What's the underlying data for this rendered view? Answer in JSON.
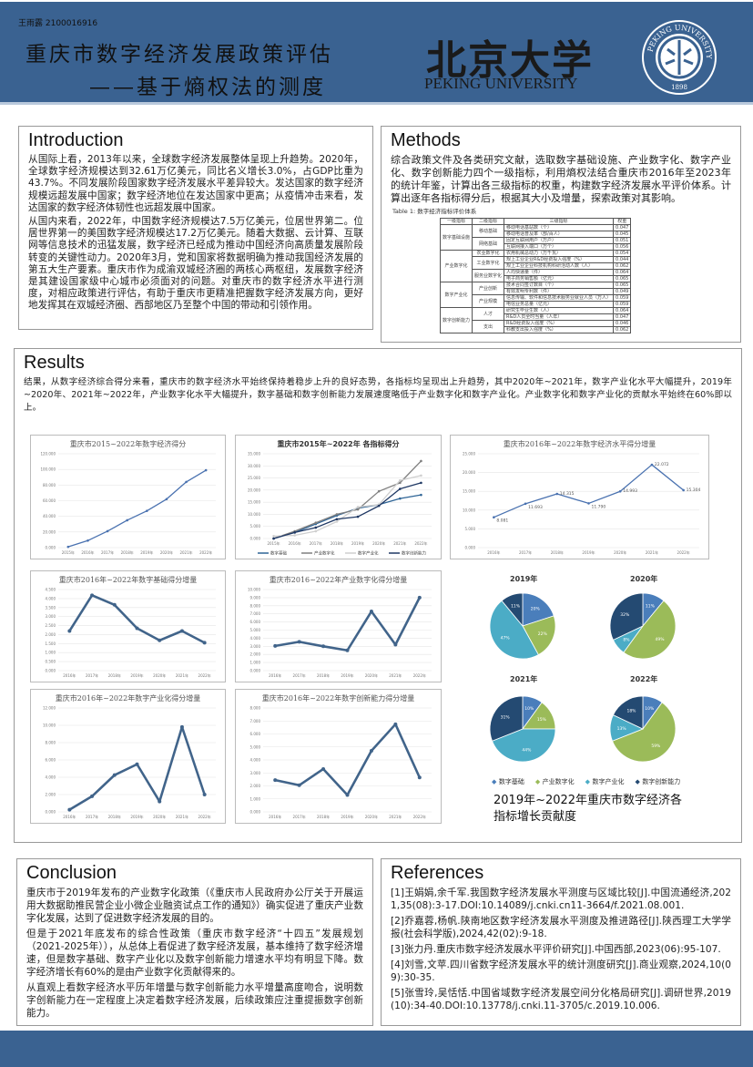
{
  "header": {
    "student": "王雨露 2100016916",
    "title_line1": "重庆市数字经济发展政策评估",
    "title_line2": "——基于熵权法的测度",
    "logo_cn": "北京大学",
    "logo_en": "PEKING UNIVERSITY",
    "seal_text": "PEKING UNIVERSITY",
    "seal_year": "1898",
    "color": "#3a6291"
  },
  "introduction": {
    "heading": "Introduction",
    "paragraphs": [
      "从国际上看，2013年以来，全球数字经济发展整体呈现上升趋势。2020年，全球数字经济规模达到32.61万亿美元，同比名义增长3.0%，占GDP比重为43.7%。不同发展阶段国家数字经济发展水平差异较大。发达国家的数字经济规模远超发展中国家；数字经济地位在发达国家中更高；从疫情冲击来看，发达国家的数字经济体韧性也远超发展中国家。",
      "从国内来看，2022年，中国数字经济规模达7.5万亿美元，位居世界第二。位居世界第一的美国数字经济规模达17.2万亿美元。随着大数据、云计算、互联网等信息技术的迅猛发展，数字经济已经成为推动中国经济向高质量发展阶段转变的关键性动力。2020年3月，党和国家将数据明确为推动我国经济发展的第五大生产要素。重庆市作为成渝双城经济圈的两核心两枢纽，发展数字经济是其建设国家级中心城市必须面对的问题。对重庆市的数字经济水平进行测度，对相应政策进行评估，有助于重庆市更精准把握数字经济发展方向，更好地发挥其在双城经济圈、西部地区乃至整个中国的带动和引领作用。"
    ]
  },
  "methods": {
    "heading": "Methods",
    "paragraph": "综合政策文件及各类研究文献，选取数字基础设施、产业数字化、数字产业化、数字创新能力四个一级指标，利用熵权法结合重庆市2016年至2023年的统计年鉴，计算出各三级指标的权重，构建数字经济发展水平评价体系。计算出逐年各指标得分后，根据其大小及增量，探索政策对其影响。",
    "table_caption": "Table 1: 数字经济指标评价体系",
    "table_headers": [
      "一级指标",
      "二级指标",
      "三级指标",
      "权重"
    ],
    "table_groups": [
      {
        "l1": "数字基础设施",
        "subs": [
          {
            "l2": "移动基础",
            "items": [
              [
                "移动电话基站数（个）",
                "0.047"
              ],
              [
                "移动电话普及率（部/百人）",
                "0.045"
              ]
            ]
          },
          {
            "l2": "网络基础",
            "items": [
              [
                "固定互联网用户（万户）",
                "0.051"
              ],
              [
                "互联网接入端口（万个）",
                "0.056"
              ]
            ]
          }
        ]
      },
      {
        "l1": "产业数字化",
        "subs": [
          {
            "l2": "农业数字化",
            "items": [
              [
                "农用机械总动力（万千瓦）",
                "0.054"
              ]
            ]
          },
          {
            "l2": "工业数字化",
            "items": [
              [
                "规上工业企业R&D经费投入强度（%）",
                "0.044"
              ],
              [
                "规上工业企业科技机构科研活动人数（人）",
                "0.062"
              ]
            ]
          },
          {
            "l2": "服务业数字化",
            "items": [
              [
                "人均快递量（件）",
                "0.064"
              ],
              [
                "电子商务销售额（亿元）",
                "0.065"
              ]
            ]
          }
        ]
      },
      {
        "l1": "数字产业化",
        "subs": [
          {
            "l2": "产业创新",
            "items": [
              [
                "技术合同签订数目（个）",
                "0.065"
              ],
              [
                "有效发明专利数（件）",
                "0.049"
              ]
            ]
          },
          {
            "l2": "产业规模",
            "items": [
              [
                "信息传输、软件和信息技术服务业就业人员（万人）",
                "0.059"
              ],
              [
                "电信业务总量（亿元）",
                "0.059"
              ]
            ]
          }
        ]
      },
      {
        "l1": "数字创新能力",
        "subs": [
          {
            "l2": "人才",
            "items": [
              [
                "研究生毕业生数（人）",
                "0.064"
              ],
              [
                "R&D人员全时当量（人年）",
                "0.047"
              ]
            ]
          },
          {
            "l2": "支出",
            "items": [
              [
                "R&D经费投入强度（%）",
                "0.046"
              ],
              [
                "科教支出投入强度（%）",
                "0.062"
              ]
            ]
          }
        ]
      }
    ]
  },
  "results": {
    "heading": "Results",
    "paragraph": "结果，从数字经济综合得分来看，重庆市的数字经济水平始终保持着稳步上升的良好态势，各指标均呈现出上升趋势，其中2020年~2021年，数字产业化水平大幅提升，2019年~2020年、2021年~2022年，产业数字化水平大幅提升，数字基础和数字创新能力发展速度略低于产业数字化和数字产业化。产业数字化和数字产业化的贡献水平始终在60%即以上。",
    "pie_caption": "2019年~2022年重庆市数字经济各指标增长贡献度"
  },
  "chart_data": [
    {
      "type": "line",
      "title": "重庆市2015~2022年数字经济得分",
      "categories": [
        "2015年",
        "2016年",
        "2017年",
        "2018年",
        "2019年",
        "2020年",
        "2021年",
        "2022年"
      ],
      "ylim": [
        0,
        120
      ],
      "ystep": 20,
      "series": [
        {
          "values": [
            1,
            9,
            21,
            35,
            47,
            62,
            84,
            99
          ],
          "color": "#4a72b0"
        }
      ],
      "markers": true
    },
    {
      "type": "line",
      "title": "重庆市2015年~2022年 各指标得分",
      "categories": [
        "2015年",
        "2016年",
        "2017年",
        "2018年",
        "2019年",
        "2020年",
        "2021年",
        "2022年"
      ],
      "ylim": [
        0,
        35
      ],
      "ystep": 5,
      "legend": "bottom",
      "series": [
        {
          "name": "数字基础",
          "values": [
            0,
            2.5,
            6,
            9.5,
            12.5,
            14,
            16.5,
            18
          ],
          "color": "#2e6496"
        },
        {
          "name": "产业数字化",
          "values": [
            0,
            3,
            6.5,
            10,
            12,
            19.5,
            23,
            32
          ],
          "color": "#7f7f7f"
        },
        {
          "name": "数字产业化",
          "values": [
            1,
            1.3,
            3,
            7,
            13,
            14,
            24,
            26
          ],
          "color": "#cfcfcf"
        },
        {
          "name": "数字创新能力",
          "values": [
            0,
            2.5,
            4.5,
            8,
            9,
            13.5,
            20.5,
            23
          ],
          "color": "#1f3864"
        }
      ],
      "markers": true
    },
    {
      "type": "line",
      "title": "重庆市2016年~2022年数字经济水平得分增量",
      "categories": [
        "2016年",
        "2017年",
        "2018年",
        "2019年",
        "2020年",
        "2021年",
        "2022年"
      ],
      "ylim": [
        0,
        25
      ],
      "ystep": 5,
      "series": [
        {
          "values": [
            8.081,
            11.693,
            14.315,
            11.79,
            14.993,
            22.072,
            15.304
          ],
          "color": "#4a72b0"
        }
      ],
      "data_labels": [
        "8.081",
        "11.693",
        "14.315",
        "11.790",
        "14.993",
        "22.072",
        "15.304"
      ],
      "markers": true
    },
    {
      "type": "line",
      "title": "重庆市2016年~2022年数字基础得分增量",
      "categories": [
        "2016年",
        "2017年",
        "2018年",
        "2019年",
        "2020年",
        "2021年",
        "2022年"
      ],
      "ylim": [
        0,
        4.5
      ],
      "ystep": 0.5,
      "series": [
        {
          "values": [
            2.2,
            4.18,
            3.65,
            2.35,
            1.68,
            2.2,
            1.55
          ],
          "color": "#41648a"
        }
      ],
      "markers": true,
      "thick": true
    },
    {
      "type": "line",
      "title": "重庆市2016~2022年产业数字化得分增量",
      "categories": [
        "2016年",
        "2017年",
        "2018年",
        "2019年",
        "2020年",
        "2021年",
        "2022年"
      ],
      "ylim": [
        0,
        10
      ],
      "ystep": 1,
      "series": [
        {
          "values": [
            3.05,
            3.55,
            3.0,
            2.5,
            7.3,
            3.2,
            9.0
          ],
          "color": "#41648a"
        }
      ],
      "markers": true,
      "thick": true
    },
    {
      "type": "line",
      "title": "重庆市2016年~2022年数字产业化得分增量",
      "categories": [
        "2016年",
        "2017年",
        "2018年",
        "2019年",
        "2020年",
        "2021年",
        "2022年"
      ],
      "ylim": [
        0,
        12
      ],
      "ystep": 2,
      "series": [
        {
          "values": [
            0.25,
            1.8,
            4.25,
            5.5,
            1.2,
            9.8,
            2.0
          ],
          "color": "#41648a"
        }
      ],
      "markers": true,
      "thick": true
    },
    {
      "type": "line",
      "title": "重庆市2016年~2022年数字创新能力得分增量",
      "categories": [
        "2016年",
        "2017年",
        "2018年",
        "2019年",
        "2020年",
        "2021年",
        "2022年"
      ],
      "ylim": [
        0,
        8
      ],
      "ystep": 1,
      "series": [
        {
          "values": [
            2.45,
            2.05,
            3.3,
            1.3,
            4.7,
            6.75,
            2.65
          ],
          "color": "#41648a"
        }
      ],
      "markers": true,
      "thick": true
    },
    {
      "type": "pie",
      "categories": [
        "数字基础",
        "产业数字化",
        "数字产业化",
        "数字创新能力"
      ],
      "colors": [
        "#4a7ebb",
        "#9bbb59",
        "#4bacc6",
        "#244a72"
      ],
      "legend": "bottom",
      "pies": [
        {
          "title": "2019年",
          "values": [
            20,
            22,
            47,
            11
          ]
        },
        {
          "title": "2020年",
          "values": [
            11,
            49,
            8,
            32
          ]
        },
        {
          "title": "2021年",
          "values": [
            10,
            15,
            44,
            31
          ]
        },
        {
          "title": "2022年",
          "values": [
            10,
            59,
            13,
            18
          ]
        }
      ]
    }
  ],
  "conclusion": {
    "heading": "Conclusion",
    "paragraphs": [
      "重庆市于2019年发布的产业数字化政策（《重庆市人民政府办公厅关于开展运用大数据助推民营企业小微企业融资试点工作的通知》）确实促进了重庆产业数字化发展，达到了促进数字经济发展的目的。",
      "但是于2021年底发布的综合性政策（重庆市数字经济“十四五”发展规划（2021-2025年）），从总体上看促进了数字经济发展，基本维持了数字经济增速，但是数字基础、数字产业化以及数字创新能力增速水平均有明显下降。数字经济增长有60%的是由产业数字化贡献得来的。",
      "从直观上看数字经济水平历年增量与数字创新能力水平增量高度吻合，说明数字创新能力在一定程度上决定着数字经济发展，后续政策应注重提振数字创新能力。"
    ]
  },
  "references": {
    "heading": "References",
    "items": [
      "[1]王娟娟,余千军.我国数字经济发展水平测度与区域比较[J].中国流通经济,2021,35(08):3-17.DOI:10.14089/j.cnki.cn11-3664/f.2021.08.001.",
      "[2]乔嘉蓉,杨帆.陕南地区数字经济发展水平测度及推进路径[J].陕西理工大学学报(社会科学版),2024,42(02):9-18.",
      "[3]张力丹.重庆市数字经济发展水平评价研究[J].中国西部,2023(06):95-107.",
      "[4]刘雪,文苹.四川省数字经济发展水平的统计测度研究[J].商业观察,2024,10(09):30-35.",
      "[5]张雪玲,吴恬恬.中国省域数字经济发展空间分化格局研究[J].调研世界,2019(10):34-40.DOI:10.13778/j.cnki.11-3705/c.2019.10.006."
    ]
  }
}
